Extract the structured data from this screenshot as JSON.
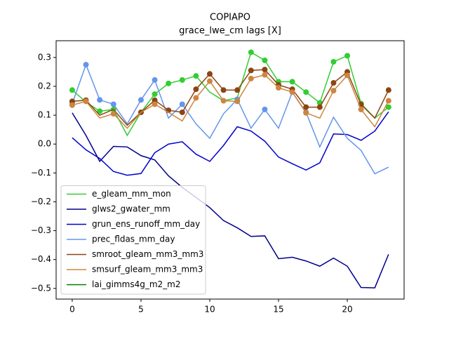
{
  "chart_data": {
    "type": "line",
    "title": "COPIAPO",
    "subtitle": "grace_lwe_cm lags [X]",
    "x": [
      0,
      1,
      2,
      3,
      4,
      5,
      6,
      7,
      8,
      9,
      10,
      11,
      12,
      13,
      14,
      15,
      16,
      17,
      18,
      19,
      20,
      21,
      22,
      23
    ],
    "xlim": [
      -1.17,
      24.13
    ],
    "xticks": [
      0,
      5,
      10,
      15,
      20
    ],
    "ylim": [
      -0.537,
      0.358
    ],
    "yticks": [
      {
        "value": -0.5,
        "label": "−0.5"
      },
      {
        "value": -0.4,
        "label": "−0.4"
      },
      {
        "value": -0.3,
        "label": "−0.3"
      },
      {
        "value": -0.2,
        "label": "−0.2"
      },
      {
        "value": -0.1,
        "label": "−0.1"
      },
      {
        "value": 0,
        "label": "0.0"
      },
      0.1,
      0.2,
      0.3
    ],
    "legend": "lower left",
    "series": [
      {
        "name": "e_gleam_mm_mon",
        "color": "#32cd32",
        "values": [
          0.187,
          0.146,
          0.114,
          0.12,
          0.03,
          0.11,
          0.173,
          0.21,
          0.222,
          0.236,
          0.18,
          0.15,
          0.16,
          0.318,
          0.29,
          0.216,
          0.216,
          0.18,
          0.143,
          0.285,
          0.306,
          0.14,
          0.09,
          0.128
        ],
        "markers": [
          0,
          2,
          3,
          6,
          7,
          8,
          9,
          13,
          14,
          15,
          16,
          17,
          18,
          19,
          20,
          21,
          23
        ]
      },
      {
        "name": "glws2_gwater_mm",
        "color": "#00008b",
        "values": [
          0.108,
          0.03,
          -0.06,
          -0.008,
          -0.01,
          -0.04,
          -0.055,
          -0.11,
          -0.15,
          -0.185,
          -0.22,
          -0.265,
          -0.29,
          -0.32,
          -0.318,
          -0.397,
          -0.392,
          -0.405,
          -0.423,
          -0.395,
          -0.423,
          -0.497,
          -0.498,
          -0.382
        ],
        "markers": []
      },
      {
        "name": "grun_ens_runoff_mm_day",
        "color": "#0000cd",
        "values": [
          0.022,
          -0.02,
          -0.05,
          -0.095,
          -0.108,
          -0.102,
          -0.03,
          0.0,
          0.008,
          -0.035,
          -0.06,
          -0.005,
          0.06,
          0.045,
          0.01,
          -0.045,
          -0.068,
          -0.09,
          -0.065,
          0.035,
          0.033,
          0.013,
          0.045,
          0.112
        ],
        "markers": []
      },
      {
        "name": "prec_fldas_mm_day",
        "color": "#6495ed",
        "values": [
          0.14,
          0.275,
          0.153,
          0.138,
          0.07,
          0.153,
          0.222,
          0.09,
          0.138,
          0.07,
          0.02,
          0.105,
          0.155,
          0.055,
          0.12,
          0.055,
          0.18,
          0.11,
          -0.01,
          0.093,
          0.02,
          -0.022,
          -0.103,
          -0.08
        ],
        "markers": [
          0,
          1,
          2,
          3,
          5,
          6,
          8,
          12,
          14,
          17
        ]
      },
      {
        "name": "smroot_gleam_mm3_mm3",
        "color": "#8b4513",
        "values": [
          0.148,
          0.152,
          0.1,
          0.12,
          0.065,
          0.11,
          0.152,
          0.117,
          0.11,
          0.19,
          0.243,
          0.187,
          0.187,
          0.255,
          0.258,
          0.205,
          0.19,
          0.128,
          0.128,
          0.212,
          0.25,
          0.137,
          0.09,
          0.187
        ],
        "markers": [
          0,
          1,
          5,
          6,
          7,
          8,
          9,
          10,
          11,
          12,
          13,
          14,
          15,
          16,
          17,
          18,
          19,
          20,
          21,
          23
        ]
      },
      {
        "name": "smsurf_gleam_mm3_mm3",
        "color": "#cd853f",
        "values": [
          0.135,
          0.148,
          0.09,
          0.105,
          0.055,
          0.11,
          0.138,
          0.11,
          0.08,
          0.16,
          0.218,
          0.15,
          0.148,
          0.227,
          0.24,
          0.195,
          0.18,
          0.108,
          0.09,
          0.185,
          0.238,
          0.12,
          0.06,
          0.15
        ],
        "markers": [
          0,
          1,
          3,
          6,
          9,
          10,
          11,
          12,
          13,
          14,
          15,
          16,
          17,
          19,
          20,
          21,
          23
        ]
      },
      {
        "name": "lai_gimms4g_m2_m2",
        "color": "#008000",
        "values": [
          null,
          null,
          null,
          null,
          null,
          null,
          null,
          null,
          null,
          null,
          null,
          null,
          null,
          null,
          null,
          null,
          null,
          null,
          null,
          null,
          null,
          null,
          null,
          null
        ],
        "markers": []
      }
    ]
  }
}
